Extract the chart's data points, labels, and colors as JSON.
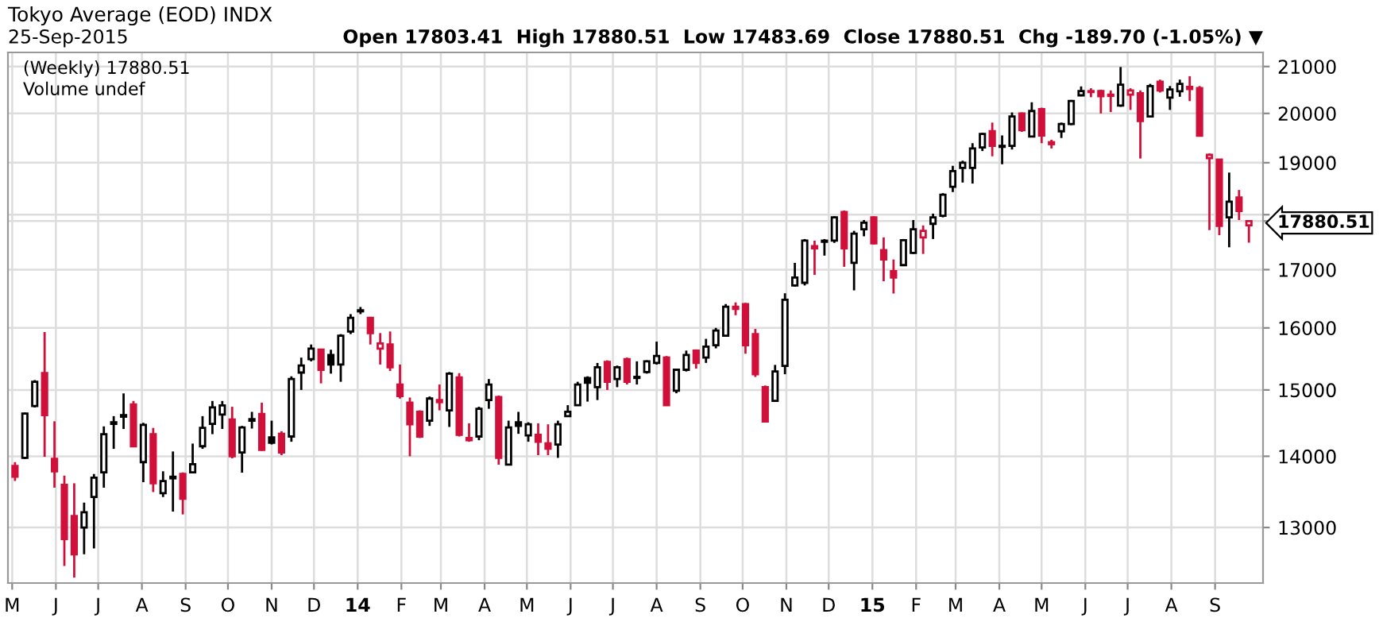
{
  "chart_data": {
    "type": "candlestick",
    "title": "Tokyo Average (EOD) INDX",
    "subtitle": "25-Sep-2015",
    "annotations": [
      "Open 17803.41  High 17880.51  Low 17483.69  Close 17880.51  Chg -189.70 (-1.05%) ▼",
      "(Weekly) 17880.51",
      "Volume undef"
    ],
    "x": [
      "2013-05-03",
      "2013-05-10",
      "2013-05-17",
      "2013-05-24",
      "2013-05-31",
      "2013-06-07",
      "2013-06-14",
      "2013-06-21",
      "2013-06-28",
      "2013-07-05",
      "2013-07-12",
      "2013-07-19",
      "2013-07-26",
      "2013-08-02",
      "2013-08-09",
      "2013-08-16",
      "2013-08-23",
      "2013-08-30",
      "2013-09-06",
      "2013-09-13",
      "2013-09-20",
      "2013-09-27",
      "2013-10-04",
      "2013-10-11",
      "2013-10-18",
      "2013-10-25",
      "2013-11-01",
      "2013-11-08",
      "2013-11-15",
      "2013-11-22",
      "2013-11-29",
      "2013-12-06",
      "2013-12-13",
      "2013-12-20",
      "2013-12-27",
      "2014-01-03",
      "2014-01-10",
      "2014-01-17",
      "2014-01-24",
      "2014-01-31",
      "2014-02-07",
      "2014-02-14",
      "2014-02-21",
      "2014-02-28",
      "2014-03-07",
      "2014-03-14",
      "2014-03-21",
      "2014-03-28",
      "2014-04-04",
      "2014-04-11",
      "2014-04-18",
      "2014-04-25",
      "2014-05-02",
      "2014-05-09",
      "2014-05-16",
      "2014-05-23",
      "2014-05-30",
      "2014-06-06",
      "2014-06-13",
      "2014-06-20",
      "2014-06-27",
      "2014-07-04",
      "2014-07-11",
      "2014-07-18",
      "2014-07-25",
      "2014-08-01",
      "2014-08-08",
      "2014-08-15",
      "2014-08-22",
      "2014-08-29",
      "2014-09-05",
      "2014-09-12",
      "2014-09-19",
      "2014-09-26",
      "2014-10-03",
      "2014-10-10",
      "2014-10-17",
      "2014-10-24",
      "2014-10-31",
      "2014-11-07",
      "2014-11-14",
      "2014-11-21",
      "2014-11-28",
      "2014-12-05",
      "2014-12-12",
      "2014-12-19",
      "2014-12-26",
      "2015-01-02",
      "2015-01-09",
      "2015-01-16",
      "2015-01-23",
      "2015-01-30",
      "2015-02-06",
      "2015-02-13",
      "2015-02-20",
      "2015-02-27",
      "2015-03-06",
      "2015-03-13",
      "2015-03-20",
      "2015-03-27",
      "2015-04-03",
      "2015-04-10",
      "2015-04-17",
      "2015-04-24",
      "2015-05-01",
      "2015-05-08",
      "2015-05-15",
      "2015-05-22",
      "2015-05-29",
      "2015-06-05",
      "2015-06-12",
      "2015-06-19",
      "2015-06-26",
      "2015-07-03",
      "2015-07-10",
      "2015-07-17",
      "2015-07-24",
      "2015-07-31",
      "2015-08-07",
      "2015-08-14",
      "2015-08-21",
      "2015-08-28",
      "2015-09-04",
      "2015-09-11",
      "2015-09-18",
      "2015-09-25"
    ],
    "ohlc": [
      [
        13860,
        13915,
        13645,
        13705
      ],
      [
        13977,
        14650,
        13960,
        14636
      ],
      [
        14752,
        15155,
        14729,
        15129
      ],
      [
        15267,
        15931,
        13992,
        14612
      ],
      [
        13961,
        14519,
        13550,
        13783
      ],
      [
        13589,
        13721,
        12490,
        12845
      ],
      [
        13155,
        13612,
        12340,
        12643
      ],
      [
        13000,
        13341,
        12643,
        13209
      ],
      [
        13419,
        13744,
        12720,
        13690
      ],
      [
        13767,
        14442,
        13550,
        14326
      ],
      [
        14480,
        14597,
        14108,
        14504
      ],
      [
        14589,
        14946,
        14403,
        14612
      ],
      [
        14775,
        14829,
        14132,
        14147
      ],
      [
        13915,
        14496,
        13628,
        14465
      ],
      [
        14326,
        14419,
        13488,
        13612
      ],
      [
        13473,
        13783,
        13419,
        13644
      ],
      [
        13682,
        14070,
        13217,
        13705
      ],
      [
        13744,
        13767,
        13178,
        13395
      ],
      [
        13767,
        14186,
        13767,
        13884
      ],
      [
        14147,
        14597,
        14108,
        14419
      ],
      [
        14480,
        14829,
        14326,
        14729
      ],
      [
        14620,
        14829,
        14403,
        14760
      ],
      [
        14544,
        14740,
        13970,
        14000
      ],
      [
        14055,
        14449,
        13763,
        14426
      ],
      [
        14528,
        14662,
        14409,
        14551
      ],
      [
        14630,
        14803,
        14079,
        14094
      ],
      [
        14276,
        14528,
        14173,
        14197
      ],
      [
        14331,
        14370,
        14016,
        14055
      ],
      [
        14291,
        15214,
        14213,
        15171
      ],
      [
        15274,
        15513,
        15000,
        15385
      ],
      [
        15487,
        15726,
        15453,
        15658
      ],
      [
        15641,
        15658,
        15103,
        15316
      ],
      [
        15555,
        15641,
        15257,
        15402
      ],
      [
        15402,
        15897,
        15128,
        15872
      ],
      [
        15940,
        16231,
        15897,
        16167
      ],
      [
        16278,
        16352,
        16231,
        16296
      ],
      [
        16167,
        16185,
        15726,
        15914
      ],
      [
        15658,
        15914,
        15402,
        15743
      ],
      [
        15726,
        15940,
        15300,
        15359
      ],
      [
        15085,
        15402,
        14866,
        14906
      ],
      [
        14803,
        14882,
        14000,
        14473
      ],
      [
        14662,
        14685,
        14268,
        14291
      ],
      [
        14528,
        14898,
        14449,
        14866
      ],
      [
        14843,
        15085,
        14685,
        14811
      ],
      [
        14685,
        15282,
        14433,
        15256
      ],
      [
        15196,
        15265,
        14291,
        14315
      ],
      [
        14268,
        14488,
        14213,
        14236
      ],
      [
        14291,
        14740,
        14236,
        14709
      ],
      [
        14843,
        15171,
        14709,
        15085
      ],
      [
        14890,
        14913,
        13878,
        13977
      ],
      [
        13878,
        14528,
        13878,
        14426
      ],
      [
        14504,
        14662,
        14331,
        14449
      ],
      [
        14307,
        14504,
        14213,
        14473
      ],
      [
        14315,
        14488,
        14016,
        14213
      ],
      [
        14189,
        14473,
        14016,
        14111
      ],
      [
        14173,
        14528,
        13977,
        14473
      ],
      [
        14598,
        14764,
        14598,
        14662
      ],
      [
        14764,
        15128,
        14764,
        15085
      ],
      [
        15188,
        15214,
        14819,
        15111
      ],
      [
        15043,
        15427,
        14843,
        15359
      ],
      [
        15444,
        15470,
        15000,
        15128
      ],
      [
        15171,
        15385,
        15043,
        15359
      ],
      [
        15487,
        15513,
        15085,
        15128
      ],
      [
        15205,
        15453,
        15085,
        15188
      ],
      [
        15282,
        15470,
        15257,
        15453
      ],
      [
        15427,
        15773,
        15402,
        15539
      ],
      [
        15513,
        15539,
        14764,
        14764
      ],
      [
        14987,
        15336,
        14948,
        15318
      ],
      [
        15318,
        15627,
        15291,
        15555
      ],
      [
        15627,
        15646,
        15336,
        15428
      ],
      [
        15514,
        15819,
        15428,
        15690
      ],
      [
        15715,
        16000,
        15663,
        15957
      ],
      [
        15871,
        16402,
        15853,
        16356
      ],
      [
        16356,
        16430,
        16213,
        16319
      ],
      [
        16402,
        16421,
        15576,
        15715
      ],
      [
        15897,
        15983,
        15204,
        15247
      ],
      [
        15043,
        15070,
        14515,
        14515
      ],
      [
        14832,
        15396,
        14816,
        15291
      ],
      [
        15379,
        16587,
        15247,
        16476
      ],
      [
        16722,
        17120,
        16704,
        16861
      ],
      [
        16769,
        17550,
        16722,
        17520
      ],
      [
        17420,
        17520,
        16907,
        17380
      ],
      [
        17500,
        17550,
        17250,
        17520
      ],
      [
        17520,
        17970,
        17480,
        17950
      ],
      [
        18050,
        18079,
        17050,
        17380
      ],
      [
        17120,
        17700,
        16637,
        17650
      ],
      [
        17730,
        17900,
        17600,
        17850
      ],
      [
        17950,
        17970,
        17450,
        17470
      ],
      [
        17350,
        17580,
        16796,
        17180
      ],
      [
        16972,
        17180,
        16583,
        16861
      ],
      [
        17080,
        17550,
        17080,
        17530
      ],
      [
        17300,
        17900,
        17280,
        17730
      ],
      [
        17580,
        17800,
        17280,
        17700
      ],
      [
        17830,
        18020,
        17550,
        17950
      ],
      [
        17980,
        18408,
        17950,
        18378
      ],
      [
        18531,
        18939,
        18429,
        18837
      ],
      [
        18898,
        19040,
        18612,
        19000
      ],
      [
        18898,
        19390,
        18592,
        19284
      ],
      [
        19305,
        19600,
        19232,
        19579
      ],
      [
        19632,
        19810,
        19127,
        19337
      ],
      [
        19337,
        19547,
        18970,
        19316
      ],
      [
        19337,
        20020,
        19263,
        19937
      ],
      [
        20000,
        20020,
        19621,
        19653
      ],
      [
        19526,
        20233,
        19526,
        20050
      ],
      [
        20090,
        20120,
        19390,
        19547
      ],
      [
        19410,
        19460,
        19284,
        19370
      ],
      [
        19632,
        19810,
        19495,
        19779
      ],
      [
        19779,
        20282,
        19758,
        20262
      ],
      [
        20380,
        20570,
        20360,
        20470
      ],
      [
        20470,
        20530,
        20340,
        20450
      ],
      [
        20470,
        20500,
        20000,
        20360
      ],
      [
        20394,
        20485,
        20028,
        20367
      ],
      [
        20165,
        20990,
        20138,
        20605
      ],
      [
        20394,
        20530,
        20073,
        20485
      ],
      [
        20422,
        20485,
        19083,
        19844
      ],
      [
        19936,
        20624,
        19917,
        20578
      ],
      [
        20670,
        20715,
        20440,
        20485
      ],
      [
        20330,
        20578,
        20073,
        20505
      ],
      [
        20468,
        20715,
        20349,
        20624
      ],
      [
        20560,
        20790,
        20257,
        20514
      ],
      [
        20532,
        20578,
        19541,
        19541
      ],
      [
        19092,
        19183,
        17714,
        19156
      ],
      [
        19064,
        19064,
        17620,
        17790
      ],
      [
        17950,
        18806,
        17400,
        18245
      ],
      [
        18326,
        18469,
        17900,
        18070
      ],
      [
        17803.41,
        17880.51,
        17483.69,
        17880.51
      ]
    ],
    "colors": [
      "#d0103a",
      "#000000",
      "#000000",
      "#d0103a",
      "#d0103a",
      "#d0103a",
      "#d0103a",
      "#000000",
      "#000000",
      "#000000",
      "#000000",
      "#000000",
      "#d0103a",
      "#000000",
      "#d0103a",
      "#000000",
      "#000000",
      "#d0103a",
      "#000000",
      "#000000",
      "#000000",
      "#000000",
      "#d0103a",
      "#000000",
      "#000000",
      "#d0103a",
      "#000000",
      "#d0103a",
      "#000000",
      "#000000",
      "#000000",
      "#d0103a",
      "#000000",
      "#000000",
      "#000000",
      "#000000",
      "#d0103a",
      "#d0103a",
      "#d0103a",
      "#d0103a",
      "#d0103a",
      "#d0103a",
      "#000000",
      "#d0103a",
      "#000000",
      "#d0103a",
      "#d0103a",
      "#000000",
      "#000000",
      "#d0103a",
      "#000000",
      "#000000",
      "#000000",
      "#d0103a",
      "#d0103a",
      "#000000",
      "#000000",
      "#000000",
      "#000000",
      "#000000",
      "#d0103a",
      "#000000",
      "#d0103a",
      "#000000",
      "#000000",
      "#000000",
      "#d0103a",
      "#000000",
      "#000000",
      "#d0103a",
      "#000000",
      "#000000",
      "#000000",
      "#d0103a",
      "#d0103a",
      "#d0103a",
      "#d0103a",
      "#000000",
      "#000000",
      "#000000",
      "#000000",
      "#d0103a",
      "#000000",
      "#000000",
      "#d0103a",
      "#000000",
      "#000000",
      "#d0103a",
      "#d0103a",
      "#d0103a",
      "#000000",
      "#000000",
      "#d0103a",
      "#000000",
      "#000000",
      "#000000",
      "#000000",
      "#000000",
      "#000000",
      "#d0103a",
      "#000000",
      "#000000",
      "#d0103a",
      "#000000",
      "#d0103a",
      "#d0103a",
      "#000000",
      "#000000",
      "#000000",
      "#d0103a",
      "#d0103a",
      "#d0103a",
      "#000000",
      "#d0103a",
      "#d0103a",
      "#000000",
      "#d0103a",
      "#000000",
      "#000000",
      "#d0103a",
      "#d0103a",
      "#d0103a",
      "#d0103a",
      "#000000",
      "#d0103a",
      "#d0103a"
    ],
    "log": true,
    "xlim": [
      "2013-04-28",
      "2015-10-05"
    ],
    "xticks": [
      {
        "value": "2013-05-01",
        "label": "M"
      },
      {
        "value": "2013-06-01",
        "label": "J"
      },
      {
        "value": "2013-07-01",
        "label": "J"
      },
      {
        "value": "2013-08-01",
        "label": "A"
      },
      {
        "value": "2013-09-01",
        "label": "S"
      },
      {
        "value": "2013-10-01",
        "label": "O"
      },
      {
        "value": "2013-11-01",
        "label": "N"
      },
      {
        "value": "2013-12-01",
        "label": "D"
      },
      {
        "value": "2014-01-01",
        "label": "14"
      },
      {
        "value": "2014-02-01",
        "label": "F"
      },
      {
        "value": "2014-03-01",
        "label": "M"
      },
      {
        "value": "2014-04-01",
        "label": "A"
      },
      {
        "value": "2014-05-01",
        "label": "M"
      },
      {
        "value": "2014-06-01",
        "label": "J"
      },
      {
        "value": "2014-07-01",
        "label": "J"
      },
      {
        "value": "2014-08-01",
        "label": "A"
      },
      {
        "value": "2014-09-01",
        "label": "S"
      },
      {
        "value": "2014-10-01",
        "label": "O"
      },
      {
        "value": "2014-11-01",
        "label": "N"
      },
      {
        "value": "2014-12-01",
        "label": "D"
      },
      {
        "value": "2015-01-01",
        "label": "15"
      },
      {
        "value": "2015-02-01",
        "label": "F"
      },
      {
        "value": "2015-03-01",
        "label": "M"
      },
      {
        "value": "2015-04-01",
        "label": "A"
      },
      {
        "value": "2015-05-01",
        "label": "M"
      },
      {
        "value": "2015-06-01",
        "label": "J"
      },
      {
        "value": "2015-07-01",
        "label": "J"
      },
      {
        "value": "2015-08-01",
        "label": "A"
      },
      {
        "value": "2015-09-01",
        "label": "S"
      }
    ],
    "ylim": [
      12270,
      21310
    ],
    "yticks": [
      13000,
      14000,
      15000,
      16000,
      17000,
      {
        "value": 17880.51,
        "label": "17880.51"
      },
      {
        "value": 18000,
        "label": null
      },
      19000,
      20000,
      21000
    ],
    "grid": true
  }
}
